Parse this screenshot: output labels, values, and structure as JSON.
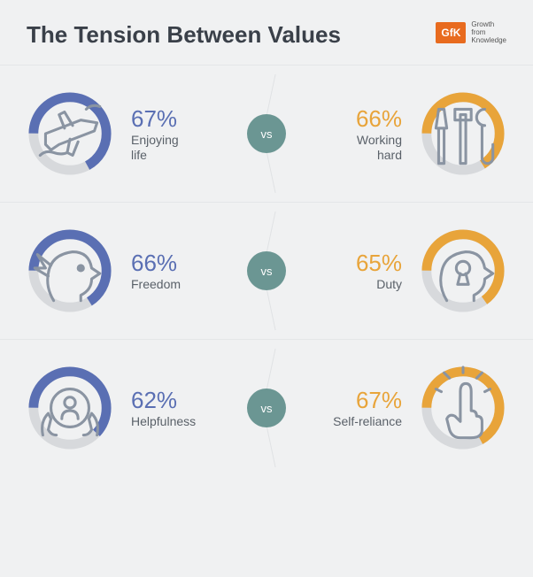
{
  "title": "The Tension Between Values",
  "brand": {
    "logo": "GfK",
    "tagline_l1": "Growth",
    "tagline_l2": "from",
    "tagline_l3": "Knowledge"
  },
  "colors": {
    "left_arc": "#5a6fb3",
    "right_arc": "#e8a43a",
    "track": "#d7d9dc",
    "vs_bg": "#6b9693",
    "icon_stroke": "#8a94a2",
    "brand_bg": "#e86b1f"
  },
  "vs_label": "vs",
  "rows": [
    {
      "left": {
        "value": 67,
        "pct_text": "67%",
        "label": "Enjoying\nlife",
        "icon": "plane"
      },
      "right": {
        "value": 66,
        "pct_text": "66%",
        "label": "Working\nhard",
        "icon": "tools"
      }
    },
    {
      "left": {
        "value": 66,
        "pct_text": "66%",
        "label": "Freedom",
        "icon": "bird-head"
      },
      "right": {
        "value": 65,
        "pct_text": "65%",
        "label": "Duty",
        "icon": "keyhole-head"
      }
    },
    {
      "left": {
        "value": 62,
        "pct_text": "62%",
        "label": "Helpfulness",
        "icon": "hands-person"
      },
      "right": {
        "value": 67,
        "pct_text": "67%",
        "label": "Self-reliance",
        "icon": "finger-point"
      }
    }
  ],
  "donut": {
    "radius": 42,
    "stroke_width": 11,
    "gap_deg": 0
  }
}
